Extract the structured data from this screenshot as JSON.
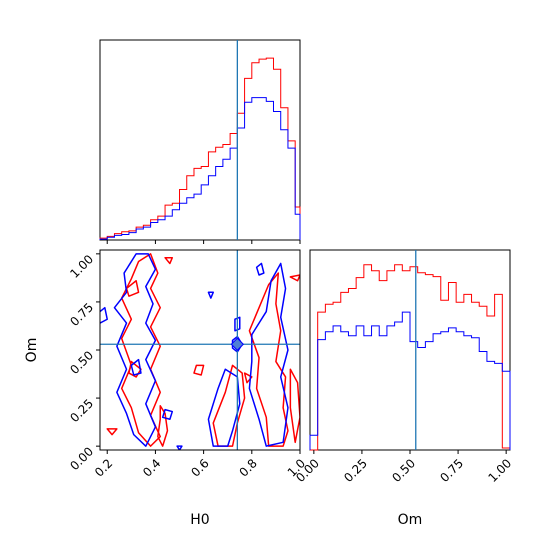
{
  "chart_data": {
    "type": "corner",
    "parameters": [
      "H0",
      "Om"
    ],
    "truth": {
      "H0": 0.74,
      "Om": 0.53
    },
    "colors": {
      "red": "#ff0000",
      "blue": "#0000ff",
      "truth": "#1f77b4"
    },
    "panels": [
      {
        "id": "hist-h0",
        "type": "histogram-step",
        "xlim": [
          0.17,
          1.0
        ],
        "bin_edges": [
          0.17,
          0.2,
          0.23,
          0.26,
          0.29,
          0.32,
          0.35,
          0.38,
          0.41,
          0.44,
          0.47,
          0.5,
          0.53,
          0.56,
          0.59,
          0.62,
          0.65,
          0.68,
          0.71,
          0.74,
          0.77,
          0.8,
          0.83,
          0.86,
          0.89,
          0.92,
          0.95,
          0.98,
          1.0
        ],
        "series": [
          {
            "name": "red",
            "values": [
              2,
              4,
              7,
              9,
              10,
              14,
              16,
              22,
              26,
              38,
              40,
              55,
              70,
              78,
              80,
              96,
              101,
              104,
              116,
              138,
              176,
              193,
              197,
              198,
              186,
              144,
              108,
              36
            ]
          },
          {
            "name": "blue",
            "values": [
              1,
              3,
              5,
              6,
              8,
              12,
              14,
              19,
              22,
              26,
              33,
              40,
              46,
              50,
              60,
              70,
              80,
              88,
              100,
              122,
              150,
              155,
              155,
              151,
              140,
              120,
              100,
              28
            ]
          }
        ],
        "x_ticks": [
          0.2,
          0.4,
          0.6,
          0.8,
          1.0
        ]
      },
      {
        "id": "contour-h0-om",
        "type": "contour",
        "xlabel": "H0",
        "ylabel": "Om",
        "xlim": [
          0.17,
          1.0
        ],
        "ylim": [
          -0.02,
          1.02
        ],
        "x_ticks": [
          0.2,
          0.4,
          0.6,
          0.8,
          1.0
        ],
        "x_tick_labels": [
          "0.2",
          "0.4",
          "0.6",
          "0.8",
          "1.0"
        ],
        "y_ticks": [
          0.0,
          0.25,
          0.5,
          0.75,
          1.0
        ],
        "y_tick_labels": [
          "0.00",
          "0.25",
          "0.50",
          "0.75",
          "1.00"
        ],
        "series": [
          {
            "name": "red",
            "contours": [
              [
                [
                  0.3,
                  0.87
                ],
                [
                  0.33,
                  0.96
                ],
                [
                  0.38,
                  1.0
                ],
                [
                  0.41,
                  0.9
                ],
                [
                  0.38,
                  0.82
                ],
                [
                  0.42,
                  0.72
                ],
                [
                  0.38,
                  0.62
                ],
                [
                  0.42,
                  0.52
                ],
                [
                  0.38,
                  0.4
                ],
                [
                  0.42,
                  0.28
                ],
                [
                  0.38,
                  0.16
                ],
                [
                  0.42,
                  0.05
                ],
                [
                  0.38,
                  0.0
                ],
                [
                  0.33,
                  0.07
                ],
                [
                  0.3,
                  0.2
                ],
                [
                  0.26,
                  0.3
                ],
                [
                  0.3,
                  0.42
                ],
                [
                  0.26,
                  0.56
                ],
                [
                  0.3,
                  0.66
                ],
                [
                  0.26,
                  0.77
                ]
              ],
              [
                [
                  0.42,
                  0.21
                ],
                [
                  0.44,
                  0.17
                ],
                [
                  0.45,
                  0.08
                ],
                [
                  0.43,
                  0.0
                ],
                [
                  0.41,
                  0.05
                ],
                [
                  0.42,
                  0.14
                ]
              ],
              [
                [
                  0.83,
                  0.72
                ],
                [
                  0.87,
                  0.84
                ],
                [
                  0.91,
                  0.9
                ],
                [
                  0.9,
                  0.74
                ],
                [
                  0.92,
                  0.6
                ],
                [
                  0.9,
                  0.44
                ],
                [
                  0.94,
                  0.36
                ],
                [
                  0.93,
                  0.2
                ],
                [
                  0.95,
                  0.08
                ],
                [
                  0.93,
                  0.0
                ],
                [
                  0.87,
                  0.0
                ],
                [
                  0.86,
                  0.15
                ],
                [
                  0.82,
                  0.3
                ],
                [
                  0.83,
                  0.46
                ],
                [
                  0.79,
                  0.6
                ]
              ],
              [
                [
                  0.72,
                  0.42
                ],
                [
                  0.76,
                  0.38
                ],
                [
                  0.77,
                  0.25
                ],
                [
                  0.74,
                  0.12
                ],
                [
                  0.72,
                  0.0
                ],
                [
                  0.66,
                  0.0
                ],
                [
                  0.64,
                  0.12
                ],
                [
                  0.69,
                  0.28
                ]
              ],
              [
                [
                  0.96,
                  0.4
                ],
                [
                  0.99,
                  0.33
                ],
                [
                  1.0,
                  0.15
                ],
                [
                  0.98,
                  0.02
                ],
                [
                  0.96,
                  0.2
                ]
              ],
              [
                [
                  0.2,
                  0.09
                ],
                [
                  0.24,
                  0.09
                ],
                [
                  0.22,
                  0.06
                ]
              ],
              [
                [
                  0.3,
                  0.44
                ],
                [
                  0.34,
                  0.4
                ],
                [
                  0.32,
                  0.36
                ],
                [
                  0.29,
                  0.38
                ]
              ],
              [
                [
                  0.28,
                  0.82
                ],
                [
                  0.32,
                  0.86
                ],
                [
                  0.33,
                  0.8
                ],
                [
                  0.29,
                  0.78
                ]
              ],
              [
                [
                  0.57,
                  0.42
                ],
                [
                  0.6,
                  0.42
                ],
                [
                  0.59,
                  0.37
                ],
                [
                  0.56,
                  0.38
                ]
              ],
              [
                [
                  0.77,
                  0.38
                ],
                [
                  0.8,
                  0.36
                ],
                [
                  0.78,
                  0.33
                ]
              ],
              [
                [
                  0.96,
                  0.88
                ],
                [
                  1.0,
                  0.89
                ],
                [
                  0.99,
                  0.86
                ]
              ],
              [
                [
                  0.44,
                  0.98
                ],
                [
                  0.47,
                  0.98
                ],
                [
                  0.46,
                  0.95
                ]
              ]
            ]
          },
          {
            "name": "blue",
            "contours": [
              [
                [
                  0.27,
                  0.9
                ],
                [
                  0.32,
                  1.0
                ],
                [
                  0.37,
                  1.0
                ],
                [
                  0.4,
                  0.92
                ],
                [
                  0.36,
                  0.83
                ],
                [
                  0.39,
                  0.74
                ],
                [
                  0.36,
                  0.64
                ],
                [
                  0.4,
                  0.55
                ],
                [
                  0.36,
                  0.45
                ],
                [
                  0.4,
                  0.34
                ],
                [
                  0.36,
                  0.22
                ],
                [
                  0.4,
                  0.1
                ],
                [
                  0.36,
                  0.0
                ],
                [
                  0.31,
                  0.06
                ],
                [
                  0.28,
                  0.17
                ],
                [
                  0.24,
                  0.28
                ],
                [
                  0.28,
                  0.4
                ],
                [
                  0.24,
                  0.52
                ],
                [
                  0.28,
                  0.64
                ],
                [
                  0.23,
                  0.72
                ],
                [
                  0.28,
                  0.8
                ]
              ],
              [
                [
                  0.8,
                  0.58
                ],
                [
                  0.86,
                  0.7
                ],
                [
                  0.88,
                  0.86
                ],
                [
                  0.92,
                  0.95
                ],
                [
                  0.94,
                  0.82
                ],
                [
                  0.92,
                  0.67
                ],
                [
                  0.95,
                  0.5
                ],
                [
                  0.92,
                  0.36
                ],
                [
                  0.95,
                  0.2
                ],
                [
                  0.93,
                  0.02
                ],
                [
                  0.86,
                  0.0
                ],
                [
                  0.83,
                  0.14
                ],
                [
                  0.79,
                  0.3
                ],
                [
                  0.8,
                  0.44
                ]
              ],
              [
                [
                  0.69,
                  0.4
                ],
                [
                  0.74,
                  0.36
                ],
                [
                  0.75,
                  0.22
                ],
                [
                  0.72,
                  0.08
                ],
                [
                  0.7,
                  0.0
                ],
                [
                  0.64,
                  0.0
                ],
                [
                  0.62,
                  0.14
                ],
                [
                  0.66,
                  0.3
                ]
              ],
              [
                [
                  0.72,
                  0.55
                ],
                [
                  0.74,
                  0.57
                ],
                [
                  0.76,
                  0.53
                ],
                [
                  0.74,
                  0.49
                ],
                [
                  0.72,
                  0.51
                ]
              ],
              [
                [
                  0.73,
                  0.66
                ],
                [
                  0.75,
                  0.67
                ],
                [
                  0.75,
                  0.61
                ],
                [
                  0.73,
                  0.6
                ]
              ],
              [
                [
                  0.16,
                  0.69
                ],
                [
                  0.19,
                  0.72
                ],
                [
                  0.2,
                  0.66
                ],
                [
                  0.17,
                  0.64
                ]
              ],
              [
                [
                  0.62,
                  0.8
                ],
                [
                  0.64,
                  0.8
                ],
                [
                  0.63,
                  0.77
                ]
              ],
              [
                [
                  0.82,
                  0.93
                ],
                [
                  0.84,
                  0.95
                ],
                [
                  0.85,
                  0.9
                ],
                [
                  0.83,
                  0.89
                ]
              ],
              [
                [
                  0.44,
                  0.19
                ],
                [
                  0.47,
                  0.18
                ],
                [
                  0.46,
                  0.14
                ],
                [
                  0.43,
                  0.15
                ]
              ],
              [
                [
                  0.49,
                  0.0
                ],
                [
                  0.51,
                  0.0
                ],
                [
                  0.5,
                  -0.02
                ]
              ],
              [
                [
                  0.3,
                  0.42
                ],
                [
                  0.33,
                  0.45
                ],
                [
                  0.34,
                  0.38
                ],
                [
                  0.31,
                  0.37
                ]
              ]
            ]
          }
        ],
        "filled_marker": {
          "x": 0.74,
          "y": 0.53
        }
      },
      {
        "id": "hist-om",
        "type": "histogram-step",
        "xlabel": "Om",
        "xlim": [
          -0.02,
          1.02
        ],
        "x_ticks": [
          0.0,
          0.25,
          0.5,
          0.75,
          1.0
        ],
        "x_tick_labels": [
          "0.00",
          "0.25",
          "0.50",
          "0.75",
          "1.00"
        ],
        "bin_edges": [
          -0.02,
          0.02,
          0.06,
          0.1,
          0.14,
          0.18,
          0.22,
          0.26,
          0.3,
          0.34,
          0.38,
          0.42,
          0.46,
          0.5,
          0.54,
          0.58,
          0.62,
          0.66,
          0.7,
          0.74,
          0.78,
          0.82,
          0.86,
          0.9,
          0.94,
          0.98,
          1.02
        ],
        "series": [
          {
            "name": "red",
            "values": [
              0,
              140,
              148,
              150,
              160,
              164,
              175,
              188,
              182,
              172,
              182,
              188,
              182,
              186,
              180,
              178,
              176,
              152,
              170,
              150,
              158,
              150,
              146,
              136,
              158,
              2
            ]
          },
          {
            "name": "blue",
            "values": [
              15,
              112,
              120,
              126,
              120,
              116,
              126,
              116,
              126,
              116,
              126,
              130,
              140,
              110,
              104,
              110,
              118,
              120,
              124,
              120,
              116,
              114,
              100,
              90,
              88,
              80
            ]
          }
        ]
      }
    ]
  }
}
